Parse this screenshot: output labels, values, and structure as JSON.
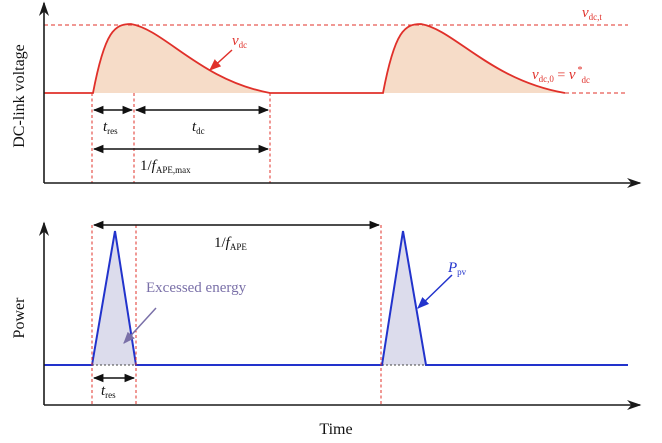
{
  "colors": {
    "axis": "#1a1a1a",
    "red": "#e0302a",
    "red_fill": "#f6dcc8",
    "blue": "#2233cc",
    "blue_fill": "#dcdcec",
    "purple": "#7a70a8",
    "dim": "#111111"
  },
  "top_plot": {
    "ylabel": "DC-link voltage",
    "label_vdc_main": "v",
    "label_vdc_sub": "dc",
    "label_vdct_main": "v",
    "label_vdct_sub": "dc,t",
    "label_vdc0_main": "v",
    "label_vdc0_sub": "dc,0",
    "label_vdc0_eq": " = ",
    "label_vdc0_ref_main": "v",
    "label_vdc0_ref_sup": "*",
    "label_vdc0_ref_sub": "dc",
    "tres_main": "t",
    "tres_sub": "res",
    "tdc_main": "t",
    "tdc_sub": "dc",
    "period_prefix": "1/",
    "period_main": "f",
    "period_sub": "APE,max"
  },
  "bottom_plot": {
    "ylabel": "Power",
    "period_prefix": "1/",
    "period_main": "f",
    "period_sub": "APE",
    "excess_label": "Excessed energy",
    "ppv_main": "P",
    "ppv_sub": "pv",
    "tres_main": "t",
    "tres_sub": "res"
  },
  "xlabel": "Time"
}
